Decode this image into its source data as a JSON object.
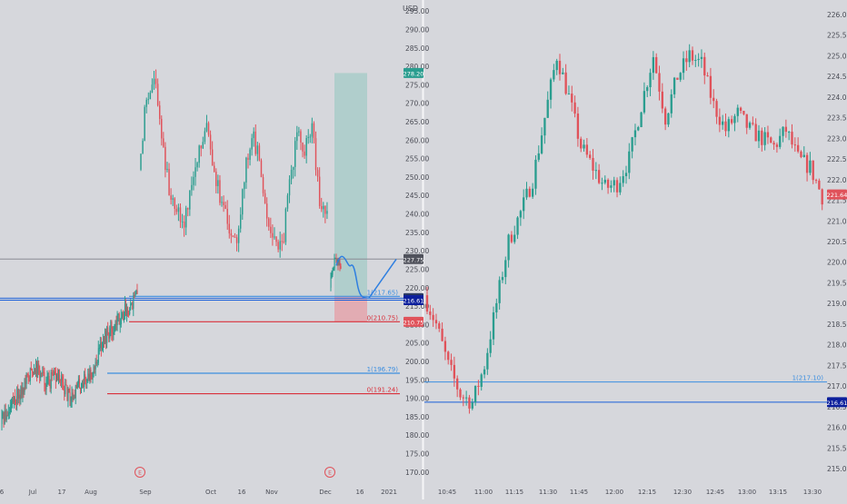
{
  "currency": "USD",
  "colors": {
    "up": "#2a9d8f",
    "down": "#e0525a",
    "blue": "#1a5fd9",
    "lightblue": "#3d8fe0",
    "red": "#d9303b",
    "grey_line": "#8a8c93",
    "chart_bg": "#d6d7dc",
    "axis_text": "#4a4c55",
    "green_zone": "#a9cdc9",
    "red_zone": "#e3a7ae"
  },
  "chart_data": [
    {
      "type": "candlestick",
      "panel": "left",
      "ylim": [
        167,
        298
      ],
      "y_ticks": [
        "170.00",
        "175.00",
        "180.00",
        "185.00",
        "190.00",
        "195.00",
        "200.00",
        "205.00",
        "210.00",
        "215.00",
        "220.00",
        "225.00",
        "230.00",
        "235.00",
        "240.00",
        "245.00",
        "250.00",
        "255.00",
        "260.00",
        "265.00",
        "270.00",
        "275.00",
        "280.00",
        "285.00",
        "290.00",
        "295.00"
      ],
      "x_ticks": [
        "6",
        "Jul",
        "17",
        "Aug",
        "Sep",
        "Oct",
        "16",
        "Nov",
        "Dec",
        "16",
        "2021"
      ],
      "earnings_markers": [
        "E",
        "E"
      ],
      "levels": [
        {
          "label": "1(217.65)",
          "value": 217.65,
          "color": "lightblue"
        },
        {
          "label": "0(210.75)",
          "value": 210.75,
          "color": "red"
        },
        {
          "label": "1(196.79)",
          "value": 196.79,
          "color": "lightblue"
        },
        {
          "label": "0(191.24)",
          "value": 191.24,
          "color": "red"
        }
      ],
      "price_labels": [
        {
          "text": "278.20",
          "value": 278.2,
          "bg": "#2a9d8f"
        },
        {
          "text": "227.75",
          "value": 227.75,
          "bg": "#50525c"
        },
        {
          "text": "217.15",
          "value": 217.15,
          "bg": "#2c3a63"
        },
        {
          "text": "216.61",
          "value": 216.61,
          "bg": "#0c1f9c"
        },
        {
          "text": "210.75",
          "value": 210.75,
          "bg": "#e0525a"
        }
      ],
      "reference_lines": [
        {
          "value": 227.75,
          "color": "grey_line"
        },
        {
          "value": 217.15,
          "color": "blue"
        },
        {
          "value": 216.61,
          "color": "blue"
        }
      ],
      "trade_zone": {
        "entry": 217.65,
        "target": 278.2,
        "stop": 210.75
      }
    },
    {
      "type": "candlestick",
      "panel": "right",
      "ylim": [
        214.65,
        226.35
      ],
      "y_ticks": [
        "215.00",
        "215.50",
        "216.00",
        "216.50",
        "217.00",
        "217.50",
        "218.00",
        "218.50",
        "219.00",
        "219.50",
        "220.00",
        "220.50",
        "221.00",
        "221.50",
        "222.00",
        "222.50",
        "223.00",
        "223.50",
        "224.00",
        "224.50",
        "225.00",
        "225.50",
        "226.00"
      ],
      "x_ticks": [
        "10:45",
        "11:00",
        "11:15",
        "11:30",
        "11:45",
        "12:00",
        "12:15",
        "12:30",
        "12:45",
        "13:00",
        "13:15",
        "13:30"
      ],
      "levels": [
        {
          "label": "1(217.10)",
          "value": 217.1,
          "color": "lightblue"
        }
      ],
      "price_labels": [
        {
          "text": "221.64",
          "value": 221.64,
          "bg": "#e0525a"
        },
        {
          "text": "216.61",
          "value": 216.61,
          "bg": "#0c1f9c"
        }
      ],
      "reference_lines": [
        {
          "value": 216.61,
          "color": "blue"
        },
        {
          "value": 217.1,
          "color": "lightblue"
        }
      ]
    }
  ]
}
